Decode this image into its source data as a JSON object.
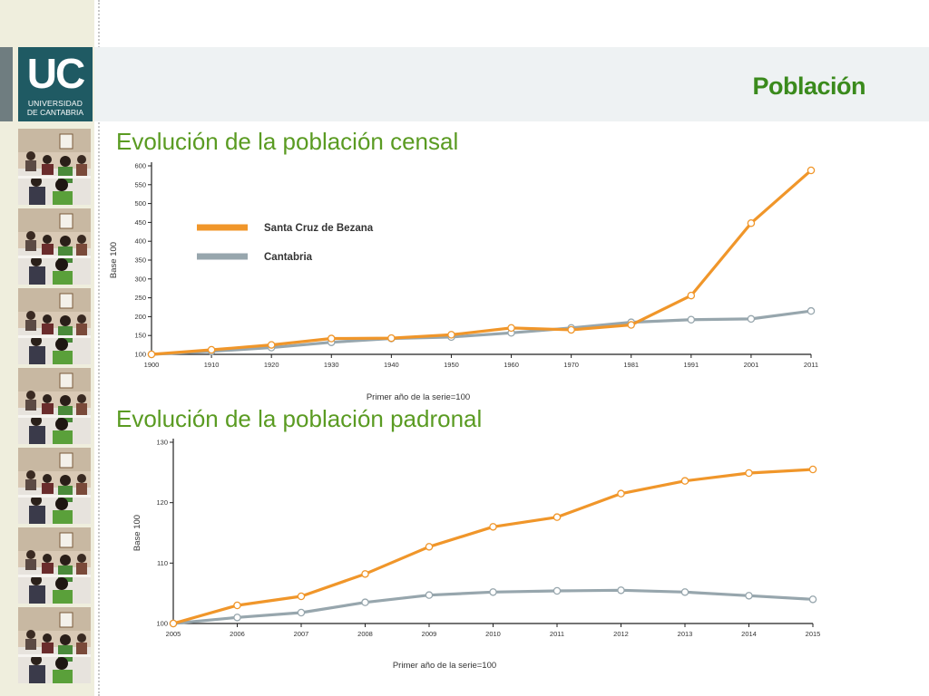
{
  "header": {
    "title": "Población"
  },
  "logo": {
    "mark": "UC",
    "line1": "UNIVERSIDAD",
    "line2": "DE CANTABRIA"
  },
  "sidebar": {
    "photo_count": 7
  },
  "colors": {
    "accent_green": "#3a8a1c",
    "orange": "#f0962a",
    "gray": "#97a6ad",
    "logo_teal": "#1f5a63"
  },
  "sections": {
    "censal_title": "Evolución de la población censal",
    "padronal_title": "Evolución de la población padronal"
  },
  "chart_data": [
    {
      "type": "line",
      "title": "Evolución de la población censal",
      "xlabel": "Primer año de la serie=100",
      "ylabel": "Base 100",
      "ylim": [
        100,
        600
      ],
      "yticks": [
        100,
        150,
        200,
        250,
        300,
        350,
        400,
        450,
        500,
        550,
        600
      ],
      "categories": [
        "1900",
        "1910",
        "1920",
        "1930",
        "1940",
        "1950",
        "1960",
        "1970",
        "1981",
        "1991",
        "2001",
        "2011"
      ],
      "legend_position": "upper-left",
      "series": [
        {
          "name": "Santa Cruz de Bezana",
          "color": "#f0962a",
          "values": [
            100,
            112,
            125,
            142,
            143,
            152,
            170,
            165,
            178,
            256,
            448,
            588
          ]
        },
        {
          "name": "Cantabria",
          "color": "#97a6ad",
          "values": [
            100,
            108,
            118,
            132,
            142,
            146,
            157,
            170,
            185,
            192,
            194,
            215
          ]
        }
      ]
    },
    {
      "type": "line",
      "title": "Evolución de la población padronal",
      "xlabel": "Primer año de la serie=100",
      "ylabel": "Base 100",
      "ylim": [
        100,
        130
      ],
      "yticks": [
        100,
        110,
        120,
        130
      ],
      "categories": [
        "2005",
        "2006",
        "2007",
        "2008",
        "2009",
        "2010",
        "2011",
        "2012",
        "2013",
        "2014",
        "2015"
      ],
      "series": [
        {
          "color": "#f0962a",
          "values": [
            100,
            103,
            104.5,
            108.2,
            112.7,
            116,
            117.6,
            121.5,
            123.6,
            124.9,
            125.5
          ]
        },
        {
          "color": "#97a6ad",
          "values": [
            100,
            101,
            101.8,
            103.5,
            104.7,
            105.2,
            105.4,
            105.5,
            105.2,
            104.6,
            104
          ]
        }
      ]
    }
  ]
}
